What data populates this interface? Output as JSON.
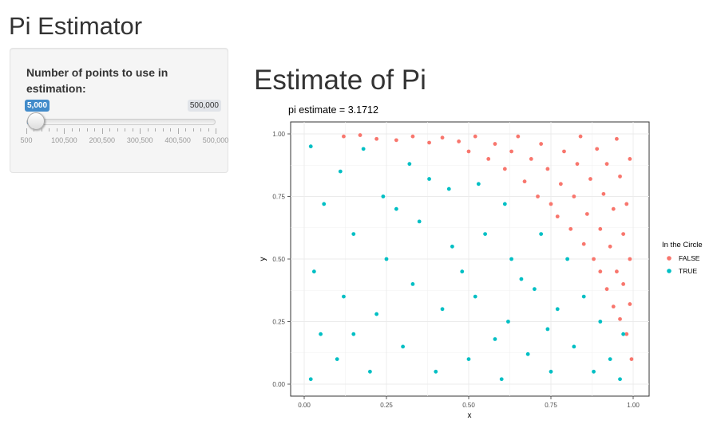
{
  "app": {
    "title": "Pi Estimator"
  },
  "sidebar": {
    "slider": {
      "label": "Number of points to use in estimation:",
      "value_label": "5,000",
      "max_label": "500,000",
      "value": 5000,
      "min": 500,
      "max": 500000,
      "grid_labels": [
        "500",
        "100,500",
        "200,500",
        "300,500",
        "400,500",
        "500,000"
      ],
      "accent_color": "#428bca"
    }
  },
  "main": {
    "title": "Estimate of Pi"
  },
  "chart_data": {
    "type": "scatter",
    "title": "pi estimate = 3.1712",
    "xlabel": "x",
    "ylabel": "y",
    "xlim": [
      0,
      1
    ],
    "ylim": [
      0,
      1
    ],
    "xticks": [
      "0.00",
      "0.25",
      "0.50",
      "0.75",
      "1.00"
    ],
    "yticks": [
      "0.00",
      "0.25",
      "0.50",
      "0.75",
      "1.00"
    ],
    "grid": true,
    "legend": {
      "title": "In the Circle",
      "position": "right",
      "entries": [
        {
          "name": "FALSE",
          "color": "#f8766d"
        },
        {
          "name": "TRUE",
          "color": "#00bfc4"
        }
      ]
    },
    "series": [
      {
        "name": "FALSE",
        "color": "#f8766d",
        "points": [
          [
            0.12,
            0.99
          ],
          [
            0.17,
            0.995
          ],
          [
            0.22,
            0.98
          ],
          [
            0.28,
            0.975
          ],
          [
            0.33,
            0.99
          ],
          [
            0.38,
            0.965
          ],
          [
            0.42,
            0.985
          ],
          [
            0.47,
            0.97
          ],
          [
            0.5,
            0.93
          ],
          [
            0.52,
            0.99
          ],
          [
            0.56,
            0.9
          ],
          [
            0.58,
            0.96
          ],
          [
            0.61,
            0.86
          ],
          [
            0.63,
            0.93
          ],
          [
            0.65,
            0.99
          ],
          [
            0.67,
            0.81
          ],
          [
            0.69,
            0.9
          ],
          [
            0.71,
            0.75
          ],
          [
            0.72,
            0.96
          ],
          [
            0.74,
            0.86
          ],
          [
            0.75,
            0.72
          ],
          [
            0.77,
            0.67
          ],
          [
            0.78,
            0.8
          ],
          [
            0.79,
            0.93
          ],
          [
            0.81,
            0.62
          ],
          [
            0.82,
            0.75
          ],
          [
            0.83,
            0.88
          ],
          [
            0.84,
            0.99
          ],
          [
            0.85,
            0.56
          ],
          [
            0.86,
            0.68
          ],
          [
            0.87,
            0.82
          ],
          [
            0.88,
            0.5
          ],
          [
            0.89,
            0.94
          ],
          [
            0.9,
            0.45
          ],
          [
            0.9,
            0.62
          ],
          [
            0.91,
            0.76
          ],
          [
            0.92,
            0.38
          ],
          [
            0.92,
            0.88
          ],
          [
            0.93,
            0.55
          ],
          [
            0.94,
            0.31
          ],
          [
            0.94,
            0.7
          ],
          [
            0.95,
            0.45
          ],
          [
            0.95,
            0.98
          ],
          [
            0.96,
            0.26
          ],
          [
            0.96,
            0.83
          ],
          [
            0.97,
            0.6
          ],
          [
            0.97,
            0.4
          ],
          [
            0.98,
            0.2
          ],
          [
            0.98,
            0.72
          ],
          [
            0.99,
            0.32
          ],
          [
            0.99,
            0.9
          ],
          [
            0.995,
            0.1
          ],
          [
            0.99,
            0.5
          ]
        ]
      },
      {
        "name": "TRUE",
        "color": "#00bfc4",
        "points": [
          [
            0.02,
            0.02
          ],
          [
            0.05,
            0.2
          ],
          [
            0.03,
            0.45
          ],
          [
            0.06,
            0.72
          ],
          [
            0.02,
            0.95
          ],
          [
            0.1,
            0.1
          ],
          [
            0.12,
            0.35
          ],
          [
            0.15,
            0.6
          ],
          [
            0.11,
            0.85
          ],
          [
            0.18,
            0.94
          ],
          [
            0.2,
            0.05
          ],
          [
            0.22,
            0.28
          ],
          [
            0.25,
            0.5
          ],
          [
            0.24,
            0.75
          ],
          [
            0.3,
            0.15
          ],
          [
            0.33,
            0.4
          ],
          [
            0.35,
            0.65
          ],
          [
            0.32,
            0.88
          ],
          [
            0.4,
            0.05
          ],
          [
            0.42,
            0.3
          ],
          [
            0.45,
            0.55
          ],
          [
            0.44,
            0.78
          ],
          [
            0.5,
            0.1
          ],
          [
            0.52,
            0.35
          ],
          [
            0.55,
            0.6
          ],
          [
            0.53,
            0.8
          ],
          [
            0.6,
            0.02
          ],
          [
            0.62,
            0.25
          ],
          [
            0.63,
            0.5
          ],
          [
            0.61,
            0.72
          ],
          [
            0.68,
            0.12
          ],
          [
            0.7,
            0.38
          ],
          [
            0.72,
            0.6
          ],
          [
            0.75,
            0.05
          ],
          [
            0.77,
            0.3
          ],
          [
            0.8,
            0.5
          ],
          [
            0.82,
            0.15
          ],
          [
            0.85,
            0.35
          ],
          [
            0.88,
            0.05
          ],
          [
            0.9,
            0.25
          ],
          [
            0.93,
            0.1
          ],
          [
            0.96,
            0.02
          ],
          [
            0.97,
            0.2
          ],
          [
            0.15,
            0.2
          ],
          [
            0.28,
            0.7
          ],
          [
            0.38,
            0.82
          ],
          [
            0.48,
            0.45
          ],
          [
            0.58,
            0.18
          ],
          [
            0.66,
            0.42
          ],
          [
            0.74,
            0.22
          ]
        ]
      }
    ]
  }
}
